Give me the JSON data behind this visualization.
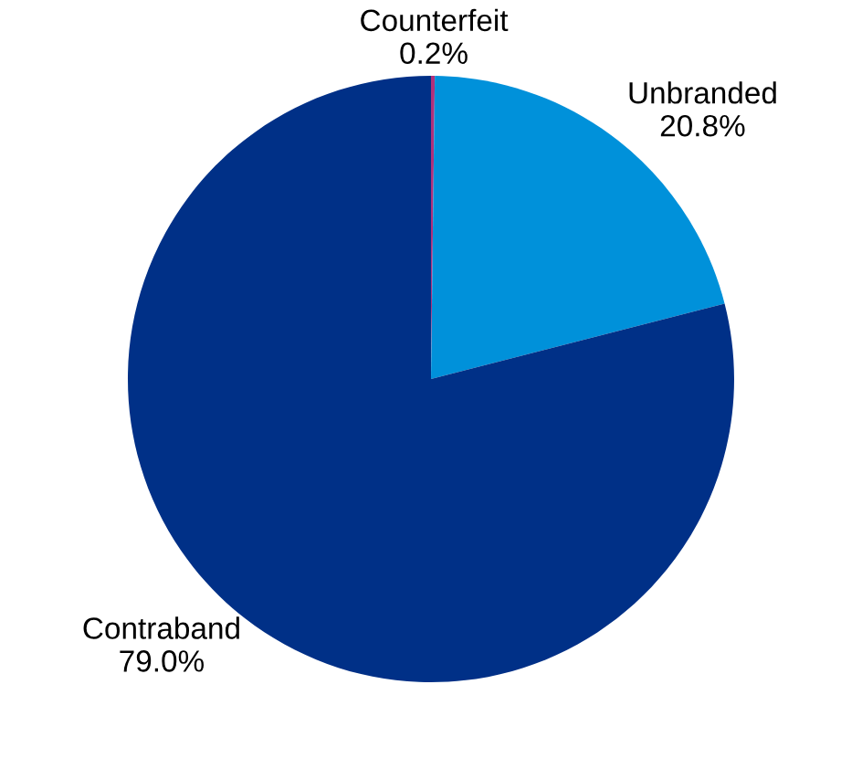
{
  "chart_data": {
    "type": "pie",
    "categories": [
      "Counterfeit",
      "Unbranded",
      "Contraband"
    ],
    "values": [
      0.2,
      20.8,
      79.0
    ],
    "value_labels": [
      "0.2%",
      "20.8%",
      "79.0%"
    ],
    "colors": [
      "#b0307a",
      "#0091da",
      "#003087"
    ]
  }
}
